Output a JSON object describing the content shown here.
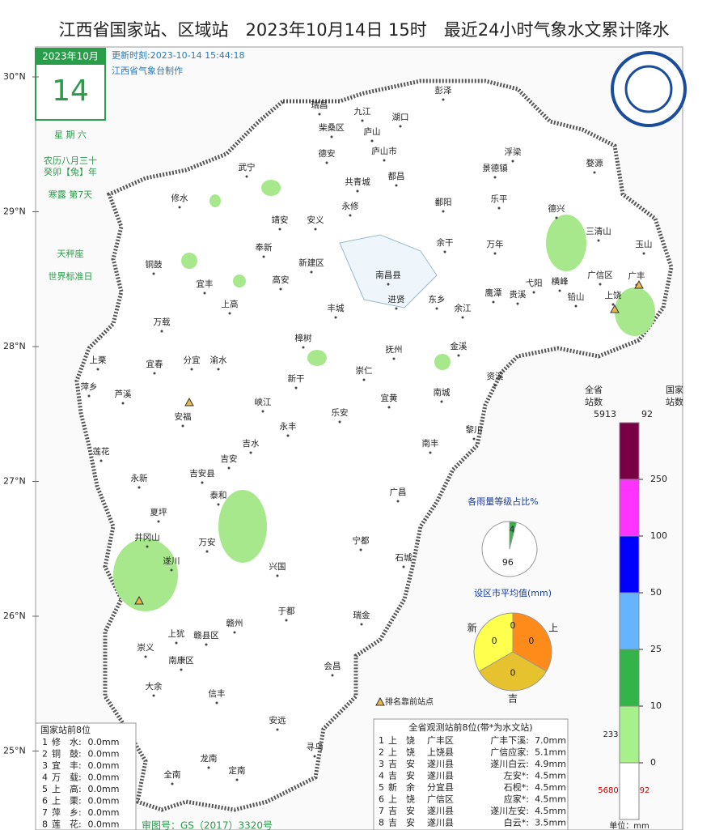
{
  "header": {
    "title": "江西省国家站、区域站　2023年10月14日 15时　最近24小时气象水文累计降水"
  },
  "calendar": {
    "month": "2023年10月",
    "day": "14",
    "weekday": "星 期 六",
    "lunar": "农历八月三十",
    "ganzhi": "癸卯【兔】年",
    "term": "寒露 第7天",
    "zodiac": "天秤座",
    "special": "世界标准日"
  },
  "info": {
    "updated": "更新时刻:2023-10-14 15:44:18",
    "maker": "江西省气象台制作"
  },
  "lat_labels": [
    "30°N",
    "29°N",
    "28°N",
    "27°N",
    "26°N",
    "25°N"
  ],
  "cities": [
    "瑞昌",
    "九江",
    "湖口",
    "彭泽",
    "柴桑区",
    "庐山",
    "庐山市",
    "德安",
    "武宁",
    "共青城",
    "都昌",
    "景德镇",
    "浮梁",
    "婺源",
    "修水",
    "永修",
    "鄱阳",
    "乐平",
    "德兴",
    "靖安",
    "安义",
    "三清山",
    "玉山",
    "余干",
    "万年",
    "奉新",
    "铜鼓",
    "新建区",
    "南昌县",
    "广信区",
    "广丰",
    "宜丰",
    "高安",
    "弋阳",
    "横峰",
    "上饶",
    "铅山",
    "进贤",
    "东乡",
    "鹰潭",
    "贵溪",
    "余江",
    "上高",
    "丰城",
    "万载",
    "樟树",
    "金溪",
    "上栗",
    "宜春",
    "分宜",
    "渝水",
    "抚州",
    "资溪",
    "崇仁",
    "萍乡",
    "芦溪",
    "新干",
    "宜黄",
    "南城",
    "峡江",
    "安福",
    "乐安",
    "永丰",
    "黎川",
    "南丰",
    "吉水",
    "莲花",
    "吉安",
    "永新",
    "吉安县",
    "泰和",
    "广昌",
    "夏坪",
    "井冈山",
    "万安",
    "宁都",
    "遂川",
    "石城",
    "兴国",
    "于都",
    "瑞金",
    "上犹",
    "赣县区",
    "赣州",
    "崇义",
    "南康区",
    "会昌",
    "大余",
    "信丰",
    "安远",
    "寻乌",
    "龙南",
    "全南",
    "定南"
  ],
  "legend": {
    "col1": [
      "全省",
      "站数"
    ],
    "col2": [
      "国家",
      "站数"
    ],
    "total_province": 5913,
    "total_national": 92,
    "levels": [
      250,
      100,
      50,
      25,
      10,
      0
    ],
    "colors": [
      "#7a0046",
      "#ff33ff",
      "#0000ff",
      "#66b3ff",
      "#33b34a",
      "#a8f08c",
      "#ffffff"
    ],
    "count_0_10": 233,
    "count_none_province": 5680,
    "count_none_national": 92,
    "unit": "单位：mm"
  },
  "pie_levels": {
    "title": "各雨量等级占比%",
    "values": [
      4,
      96
    ],
    "colors": [
      "#33b34a",
      "#ffffff"
    ]
  },
  "pie_cities": {
    "title": "设区市平均值(mm)",
    "labels": [
      "上",
      "吉",
      "新"
    ],
    "values": [
      0,
      0,
      0
    ],
    "colors": [
      "#ff8c1a",
      "#e6c22e",
      "#ffff4d"
    ],
    "top_label": "0"
  },
  "marker_note": "排名靠前站点",
  "national_table": {
    "title": "国家站前8位",
    "rows": [
      [
        "1",
        "修　水:",
        "0.0mm"
      ],
      [
        "2",
        "铜　鼓:",
        "0.0mm"
      ],
      [
        "3",
        "宜　丰:",
        "0.0mm"
      ],
      [
        "4",
        "万　载:",
        "0.0mm"
      ],
      [
        "5",
        "上　高:",
        "0.0mm"
      ],
      [
        "6",
        "上　栗:",
        "0.0mm"
      ],
      [
        "7",
        "萍　乡:",
        "0.0mm"
      ],
      [
        "8",
        "莲　花:",
        "0.0mm"
      ]
    ]
  },
  "province_table": {
    "title": "全省观测站前8位(带*为水文站)",
    "rows": [
      [
        "1",
        "上　饶",
        "广丰区",
        "广丰下溪:",
        "7.0mm"
      ],
      [
        "2",
        "上　饶",
        "上饶县",
        "广信应家:",
        "5.1mm"
      ],
      [
        "3",
        "吉　安",
        "遂川县",
        "遂川白云:",
        "4.9mm"
      ],
      [
        "4",
        "吉　安",
        "遂川县",
        "左安*:",
        "4.5mm"
      ],
      [
        "5",
        "新　余",
        "分宜县",
        "石枧*:",
        "4.5mm"
      ],
      [
        "6",
        "上　饶",
        "广信区",
        "应家*:",
        "4.5mm"
      ],
      [
        "7",
        "吉　安",
        "遂川县",
        "遂川左安:",
        "4.5mm"
      ],
      [
        "8",
        "吉　安",
        "遂川县",
        "白云*:",
        "3.5mm"
      ]
    ]
  },
  "footer": {
    "approval": "审图号：GS（2017）3320号"
  }
}
